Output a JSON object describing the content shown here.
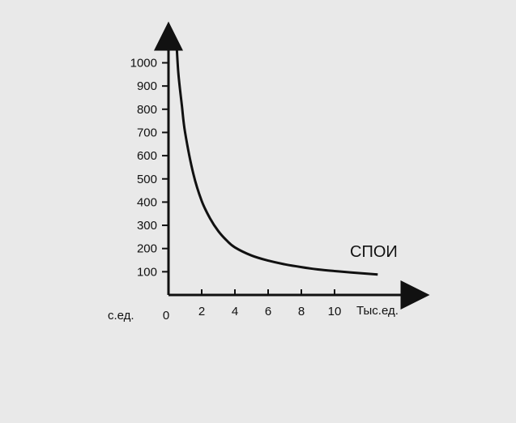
{
  "chart_data": {
    "type": "line",
    "xlabel": "Тыс.ед.",
    "ylabel": "с.ед.",
    "origin_label": "0",
    "x_ticks": [
      2,
      4,
      6,
      8,
      10
    ],
    "y_ticks": [
      100,
      200,
      300,
      400,
      500,
      600,
      700,
      800,
      900,
      1000
    ],
    "xlim": [
      0,
      13
    ],
    "ylim": [
      0,
      1150
    ],
    "grid": false,
    "series": [
      {
        "name": "СПОИ",
        "x": [
          0.5,
          0.6,
          0.8,
          1,
          1.5,
          2,
          2.5,
          3,
          3.5,
          4,
          5,
          6,
          7,
          8,
          9,
          10,
          11,
          12.6
        ],
        "y": [
          1060,
          950,
          820,
          700,
          520,
          405,
          330,
          275,
          235,
          205,
          170,
          148,
          132,
          120,
          110,
          103,
          97,
          88
        ]
      }
    ]
  },
  "colors": {
    "ink": "#111111",
    "paper": "#e9e9e9"
  }
}
